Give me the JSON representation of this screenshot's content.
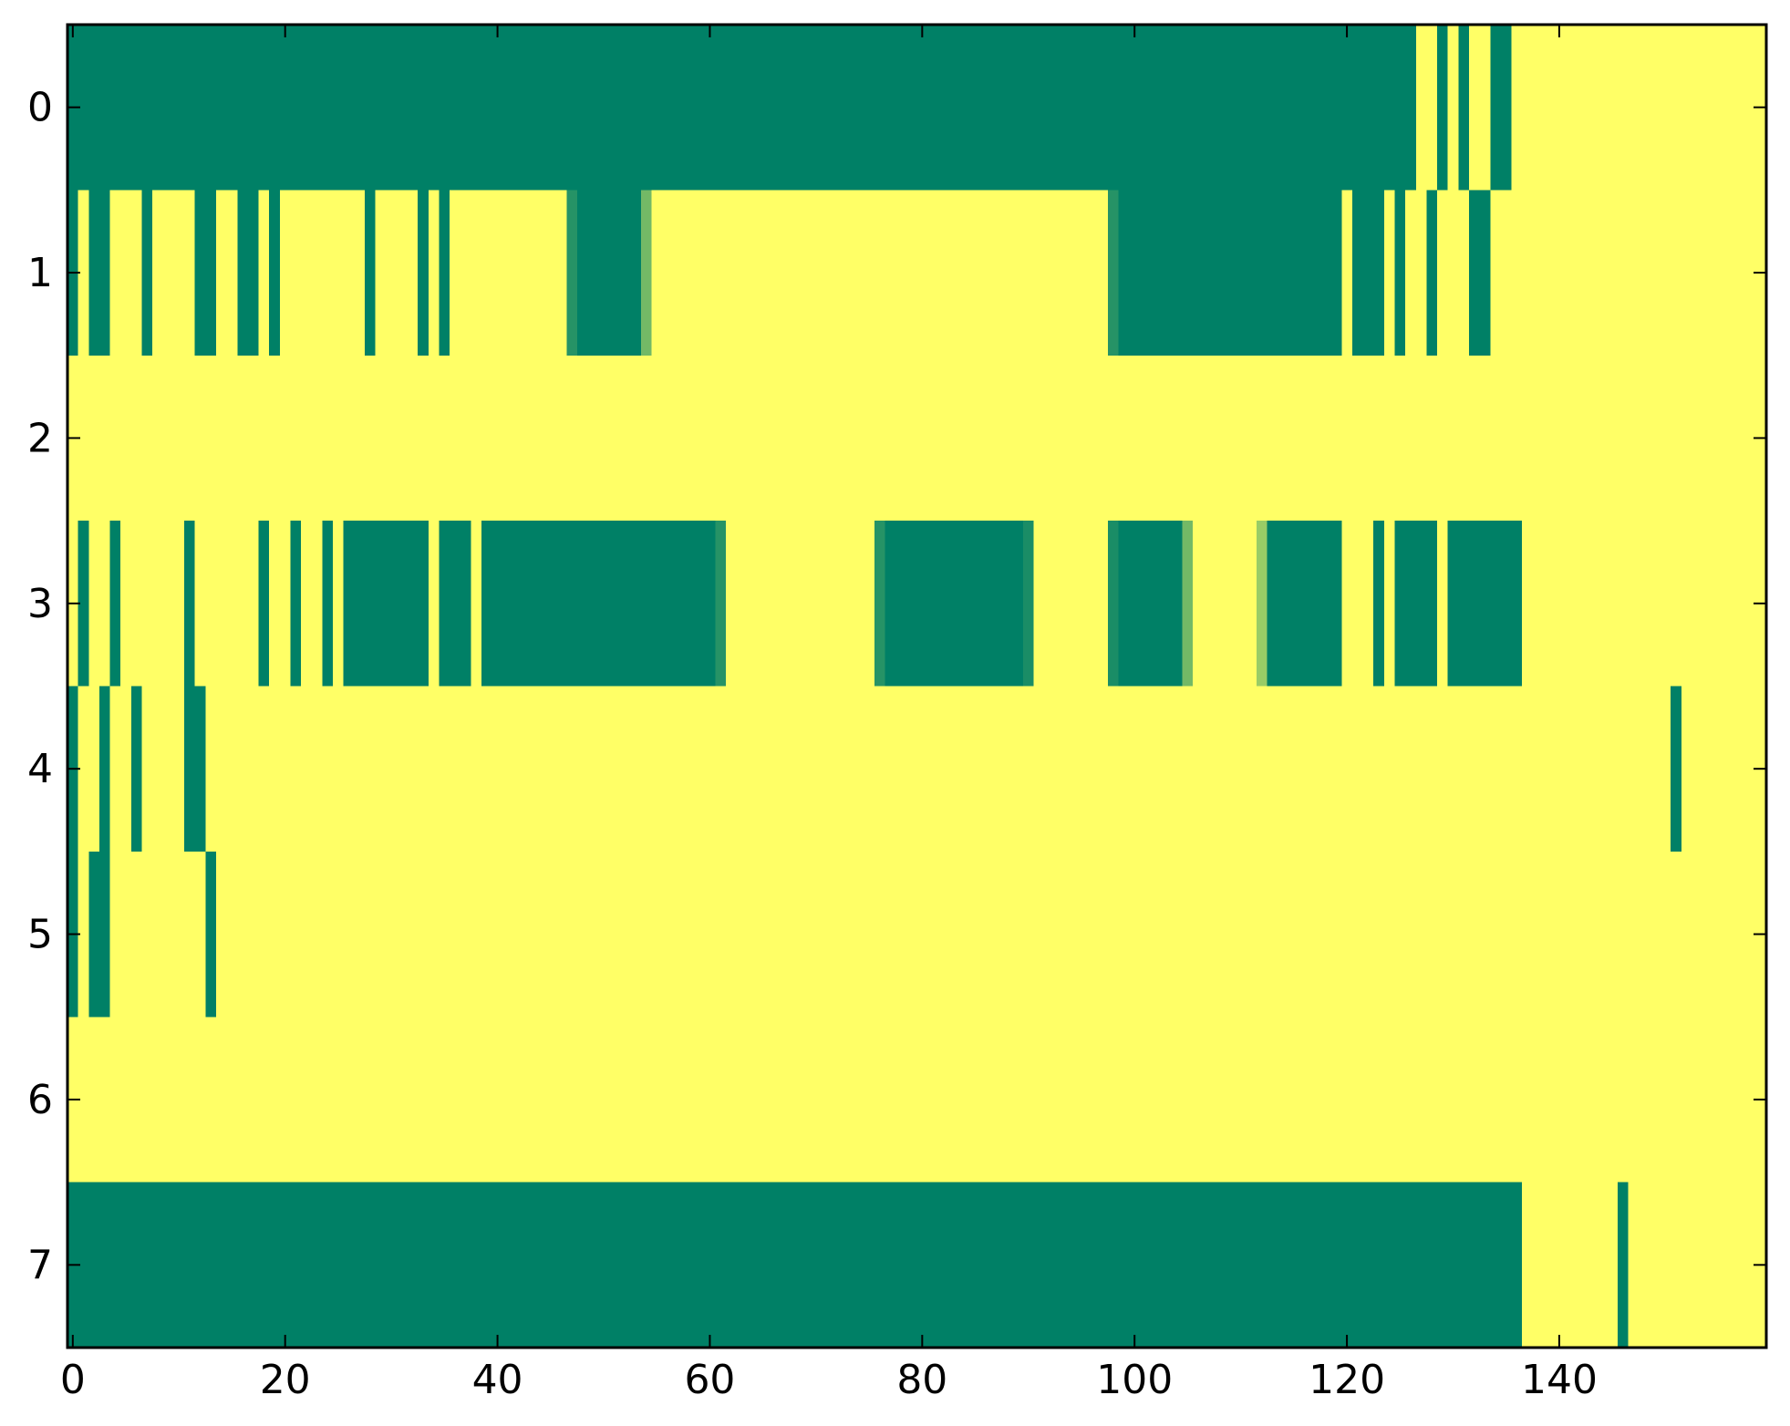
{
  "chart_data": {
    "type": "heatmap",
    "title": "",
    "xlabel": "",
    "ylabel": "",
    "x_range": [
      -0.5,
      159.5
    ],
    "y_range": [
      -0.5,
      7.5
    ],
    "y_inverted": true,
    "grid": false,
    "legend": "none",
    "x_ticks": [
      0,
      20,
      40,
      60,
      80,
      100,
      120,
      140
    ],
    "x_tick_labels": [
      "0",
      "20",
      "40",
      "60",
      "80",
      "100",
      "120",
      "140"
    ],
    "y_ticks": [
      0,
      1,
      2,
      3,
      4,
      5,
      6,
      7
    ],
    "y_tick_labels": [
      "0",
      "1",
      "2",
      "3",
      "4",
      "5",
      "6",
      "7"
    ],
    "colormap": "summer",
    "value_range": [
      0,
      1
    ],
    "colors": {
      "low": "#008066",
      "high": "#ffff66",
      "frame": "#000000"
    },
    "rows_note_default_value": 1,
    "rows": [
      {
        "row": 0,
        "segments": [
          {
            "x0": -0.5,
            "x1": 126.5,
            "value": 0
          },
          {
            "x0": 128.5,
            "x1": 129.5,
            "value": 0
          },
          {
            "x0": 130.5,
            "x1": 131.5,
            "value": 0
          },
          {
            "x0": 133.5,
            "x1": 135.5,
            "value": 0
          }
        ]
      },
      {
        "row": 1,
        "segments": [
          {
            "x0": -0.5,
            "x1": 0.5,
            "value": 0
          },
          {
            "x0": 1.5,
            "x1": 3.5,
            "value": 0
          },
          {
            "x0": 6.5,
            "x1": 7.5,
            "value": 0
          },
          {
            "x0": 11.5,
            "x1": 13.5,
            "value": 0
          },
          {
            "x0": 15.5,
            "x1": 17.5,
            "value": 0
          },
          {
            "x0": 18.5,
            "x1": 19.5,
            "value": 0
          },
          {
            "x0": 27.5,
            "x1": 28.5,
            "value": 0
          },
          {
            "x0": 32.5,
            "x1": 33.5,
            "value": 0
          },
          {
            "x0": 34.5,
            "x1": 35.5,
            "value": 0
          },
          {
            "x0": 46.5,
            "x1": 47.5,
            "value": 0.15
          },
          {
            "x0": 47.5,
            "x1": 53.5,
            "value": 0
          },
          {
            "x0": 53.5,
            "x1": 54.5,
            "value": 0.45
          },
          {
            "x0": 97.5,
            "x1": 98.5,
            "value": 0.15
          },
          {
            "x0": 98.5,
            "x1": 119.5,
            "value": 0
          },
          {
            "x0": 120.5,
            "x1": 123.5,
            "value": 0
          },
          {
            "x0": 124.5,
            "x1": 125.5,
            "value": 0
          },
          {
            "x0": 127.5,
            "x1": 128.5,
            "value": 0
          },
          {
            "x0": 131.5,
            "x1": 133.5,
            "value": 0
          }
        ]
      },
      {
        "row": 2,
        "segments": []
      },
      {
        "row": 3,
        "segments": [
          {
            "x0": 0.5,
            "x1": 1.5,
            "value": 0
          },
          {
            "x0": 3.5,
            "x1": 4.5,
            "value": 0
          },
          {
            "x0": 10.5,
            "x1": 11.5,
            "value": 0
          },
          {
            "x0": 17.5,
            "x1": 18.5,
            "value": 0
          },
          {
            "x0": 20.5,
            "x1": 21.5,
            "value": 0
          },
          {
            "x0": 23.5,
            "x1": 24.5,
            "value": 0
          },
          {
            "x0": 25.5,
            "x1": 33.5,
            "value": 0
          },
          {
            "x0": 34.5,
            "x1": 37.5,
            "value": 0
          },
          {
            "x0": 38.5,
            "x1": 60.5,
            "value": 0
          },
          {
            "x0": 60.5,
            "x1": 61.5,
            "value": 0.15
          },
          {
            "x0": 75.5,
            "x1": 76.5,
            "value": 0.15
          },
          {
            "x0": 76.5,
            "x1": 89.5,
            "value": 0
          },
          {
            "x0": 89.5,
            "x1": 90.5,
            "value": 0.1
          },
          {
            "x0": 97.5,
            "x1": 98.5,
            "value": 0.1
          },
          {
            "x0": 98.5,
            "x1": 104.5,
            "value": 0
          },
          {
            "x0": 104.5,
            "x1": 105.5,
            "value": 0.45
          },
          {
            "x0": 111.5,
            "x1": 112.5,
            "value": 0.6
          },
          {
            "x0": 112.5,
            "x1": 119.5,
            "value": 0
          },
          {
            "x0": 122.5,
            "x1": 123.5,
            "value": 0
          },
          {
            "x0": 124.5,
            "x1": 128.5,
            "value": 0
          },
          {
            "x0": 129.5,
            "x1": 136.5,
            "value": 0
          }
        ]
      },
      {
        "row": 4,
        "segments": [
          {
            "x0": -0.5,
            "x1": 0.5,
            "value": 0
          },
          {
            "x0": 2.5,
            "x1": 3.5,
            "value": 0
          },
          {
            "x0": 5.5,
            "x1": 6.5,
            "value": 0
          },
          {
            "x0": 10.5,
            "x1": 12.5,
            "value": 0
          },
          {
            "x0": 150.5,
            "x1": 151.5,
            "value": 0
          }
        ]
      },
      {
        "row": 5,
        "segments": [
          {
            "x0": -0.5,
            "x1": 0.5,
            "value": 0
          },
          {
            "x0": 1.5,
            "x1": 3.5,
            "value": 0
          },
          {
            "x0": 12.5,
            "x1": 13.5,
            "value": 0
          }
        ]
      },
      {
        "row": 6,
        "segments": []
      },
      {
        "row": 7,
        "segments": [
          {
            "x0": -0.5,
            "x1": 136.5,
            "value": 0
          },
          {
            "x0": 145.5,
            "x1": 146.5,
            "value": 0
          }
        ]
      }
    ]
  }
}
